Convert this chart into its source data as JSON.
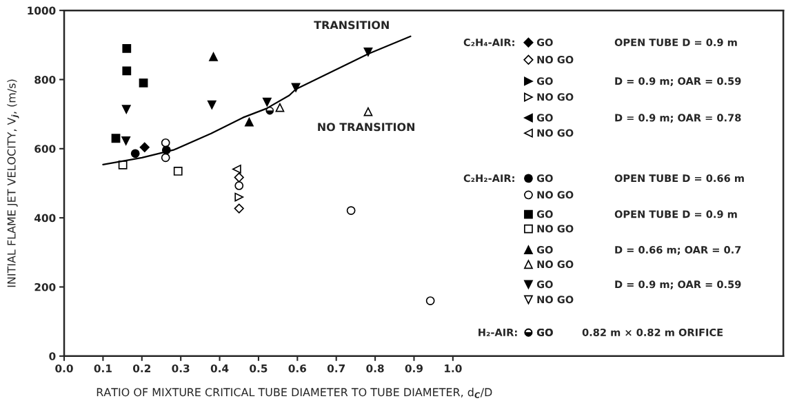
{
  "chart_data": {
    "type": "scatter",
    "xlabel": "RATIO OF MIXTURE CRITICAL TUBE DIAMETER TO TUBE DIAMETER, d$_{C}$/D",
    "ylabel": "INITIAL FLAME JET VELOCITY, V$_{j}$, (m/s)",
    "xlim": [
      0,
      1.85
    ],
    "ylim": [
      0,
      1000
    ],
    "xticks": [
      {
        "value": 0,
        "label": "0.0"
      },
      0.1,
      0.2,
      0.3,
      0.4,
      0.5,
      0.6,
      0.7,
      0.8,
      0.9,
      {
        "value": 1,
        "label": "1.0"
      }
    ],
    "yticks": [
      0,
      200,
      400,
      600,
      800,
      1000
    ],
    "grid": false,
    "legend": "right",
    "series": [
      {
        "type": "line",
        "color": "#000000",
        "marker": "none",
        "line_style": "solid",
        "x": [
          0.1,
          0.2,
          0.283,
          0.378,
          0.46,
          0.52,
          0.579,
          0.596,
          0.782,
          0.891
        ],
        "values": [
          554,
          574,
          597,
          644,
          690,
          716,
          754,
          772,
          874,
          925
        ]
      },
      {
        "name": "GO",
        "color": "#000000",
        "marker": "diamond",
        "x": [
          0.207
        ],
        "values": [
          604
        ]
      },
      {
        "name": "NO GO",
        "color": "#000000",
        "marker": "diamond-open",
        "x": [
          0.45,
          0.45
        ],
        "values": [
          517,
          427
        ]
      },
      {
        "name": "GO",
        "color": "#000000",
        "marker": "triangle-right"
      },
      {
        "name": "NO GO",
        "color": "#000000",
        "marker": "triangle-right-open",
        "x": [
          0.45
        ],
        "values": [
          460
        ]
      },
      {
        "name": "GO",
        "color": "#000000",
        "marker": "triangle-left"
      },
      {
        "name": "NO GO",
        "color": "#000000",
        "marker": "triangle-left-open",
        "x": [
          0.444
        ],
        "values": [
          541
        ]
      },
      {
        "name": "GO",
        "color": "#000000",
        "marker": "circle",
        "x": [
          0.183,
          0.263
        ],
        "values": [
          586,
          596
        ]
      },
      {
        "name": "NO GO",
        "color": "#000000",
        "marker": "circle-open",
        "x": [
          0.261,
          0.261,
          0.45,
          0.738,
          0.942
        ],
        "values": [
          617,
          574,
          493,
          421,
          160
        ]
      },
      {
        "name": "GO",
        "color": "#000000",
        "marker": "square",
        "x": [
          0.161,
          0.161,
          0.204,
          0.133
        ],
        "values": [
          890,
          825,
          790,
          630
        ]
      },
      {
        "name": "NO GO",
        "color": "#000000",
        "marker": "square-open",
        "x": [
          0.151,
          0.293
        ],
        "values": [
          553,
          535
        ]
      },
      {
        "name": "GO",
        "color": "#000000",
        "marker": "triangle",
        "x": [
          0.384,
          0.476
        ],
        "values": [
          866,
          677
        ]
      },
      {
        "name": "NO GO",
        "color": "#000000",
        "marker": "triangle-open",
        "x": [
          0.555,
          0.782
        ],
        "values": [
          719,
          707
        ]
      },
      {
        "name": "GO",
        "color": "#000000",
        "marker": "triangle-down",
        "x": [
          0.16,
          0.159,
          0.38,
          0.522,
          0.596,
          0.782
        ],
        "values": [
          714,
          623,
          727,
          735,
          777,
          880
        ]
      },
      {
        "name": "NO GO",
        "color": "#000000",
        "marker": "triangle-down-open"
      },
      {
        "name": "GO",
        "color": "#000000",
        "marker": "circle-half",
        "x": [
          0.529
        ],
        "values": [
          710
        ]
      }
    ],
    "annotations": [
      "TRANSITION",
      "NO TRANSITION",
      "C₂H₄-AIR:",
      "OPEN TUBE D = 0.9 m",
      "D = 0.9 m; OAR = 0.59",
      "D = 0.9 m; OAR = 0.78",
      "C₂H₂-AIR:",
      "OPEN TUBE D = 0.66 m",
      "OPEN TUBE D = 0.9 m",
      "D = 0.66 m; OAR = 0.7",
      "D = 0.9 m; OAR = 0.59",
      "H₂-AIR:",
      "0.82 m × 0.82 m ORIFICE"
    ]
  }
}
